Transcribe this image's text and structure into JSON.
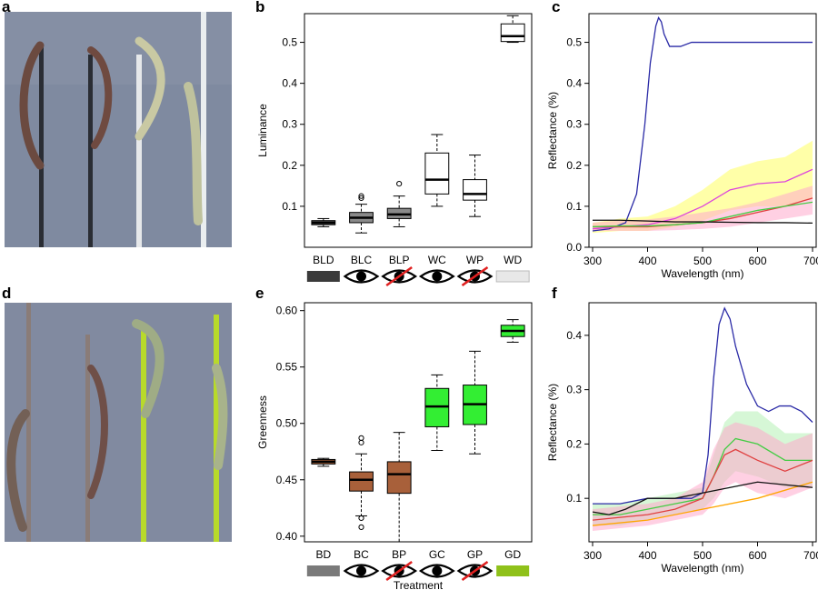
{
  "panel_letters": {
    "a": "a",
    "b": "b",
    "c": "c",
    "d": "d",
    "e": "e",
    "f": "f"
  },
  "colors": {
    "white_box": "#ffffff",
    "dark_box": "#5e5e5e",
    "grey_box": "#8a8a8a",
    "brown_box": "#a8603a",
    "green_box": "#33ee33",
    "blue_line": "#2a2aa6",
    "pink_line": "#dd44dd",
    "red_line": "#e04040",
    "green_line": "#44cc44",
    "black_line": "#111111",
    "photo_bg": "#7f8aa0"
  },
  "photos": [
    {
      "id": "a",
      "description_icon": "larvae-on-dark-and-white-rods-photo"
    },
    {
      "id": "d",
      "description_icon": "larvae-on-brown-and-green-rods-photo"
    }
  ],
  "chart_data": [
    {
      "panel": "b",
      "type": "box",
      "xlabel": "",
      "ylabel": "Luminance",
      "ylim": [
        0.0,
        0.57
      ],
      "yticks": [
        0.1,
        0.2,
        0.3,
        0.4,
        0.5
      ],
      "ytick_labels": [
        "0.1",
        "0.2",
        "0.3",
        "0.4",
        "0.5"
      ],
      "categories": [
        "BLD",
        "BLC",
        "BLP",
        "WC",
        "WP",
        "WD"
      ],
      "boxes": [
        {
          "label": "BLD",
          "min": 0.05,
          "q1": 0.055,
          "median": 0.06,
          "q3": 0.065,
          "max": 0.07,
          "outliers": [],
          "fill": "#5e5e5e",
          "marker": "dark-swatch"
        },
        {
          "label": "BLC",
          "min": 0.035,
          "q1": 0.06,
          "median": 0.072,
          "q3": 0.085,
          "max": 0.105,
          "outliers": [
            0.12,
            0.125
          ],
          "fill": "#8a8a8a",
          "marker": "eye-icon"
        },
        {
          "label": "BLP",
          "min": 0.05,
          "q1": 0.07,
          "median": 0.08,
          "q3": 0.095,
          "max": 0.125,
          "outliers": [
            0.155
          ],
          "fill": "#8a8a8a",
          "marker": "eye-crossed-icon"
        },
        {
          "label": "WC",
          "min": 0.1,
          "q1": 0.13,
          "median": 0.165,
          "q3": 0.23,
          "max": 0.275,
          "outliers": [],
          "fill": "#ffffff",
          "marker": "eye-icon"
        },
        {
          "label": "WP",
          "min": 0.075,
          "q1": 0.115,
          "median": 0.13,
          "q3": 0.165,
          "max": 0.225,
          "outliers": [],
          "fill": "#ffffff",
          "marker": "eye-crossed-icon"
        },
        {
          "label": "WD",
          "min": 0.5,
          "q1": 0.502,
          "median": 0.515,
          "q3": 0.545,
          "max": 0.565,
          "outliers": [],
          "fill": "#ffffff",
          "marker": "white-swatch"
        }
      ]
    },
    {
      "panel": "c",
      "type": "line",
      "xlabel": "Wavelength (nm)",
      "ylabel": "Reflectance (%)",
      "xlim": [
        300,
        700
      ],
      "ylim": [
        0.0,
        0.57
      ],
      "xticks": [
        300,
        400,
        500,
        600,
        700
      ],
      "yticks": [
        0.0,
        0.1,
        0.2,
        0.3,
        0.4,
        0.5
      ],
      "ytick_labels": [
        "0.0",
        "0.1",
        "0.2",
        "0.3",
        "0.4",
        "0.5"
      ],
      "series": [
        {
          "color": "#2a2aa6",
          "x": [
            300,
            330,
            360,
            380,
            395,
            405,
            415,
            420,
            425,
            430,
            440,
            460,
            480,
            500,
            550,
            600,
            650,
            700
          ],
          "y": [
            0.04,
            0.045,
            0.06,
            0.13,
            0.3,
            0.45,
            0.54,
            0.56,
            0.55,
            0.52,
            0.49,
            0.49,
            0.5,
            0.5,
            0.5,
            0.5,
            0.5,
            0.5
          ],
          "band": null
        },
        {
          "color": "#dd44dd",
          "x": [
            300,
            350,
            400,
            450,
            500,
            550,
            600,
            650,
            700
          ],
          "y": [
            0.045,
            0.05,
            0.055,
            0.07,
            0.1,
            0.14,
            0.155,
            0.16,
            0.19
          ],
          "band": {
            "lo": [
              0.035,
              0.04,
              0.04,
              0.05,
              0.065,
              0.09,
              0.1,
              0.1,
              0.12
            ],
            "hi": [
              0.06,
              0.07,
              0.075,
              0.1,
              0.14,
              0.19,
              0.21,
              0.22,
              0.26
            ],
            "color": "#ffff60"
          }
        },
        {
          "color": "#e04040",
          "x": [
            300,
            350,
            400,
            450,
            500,
            550,
            600,
            650,
            700
          ],
          "y": [
            0.05,
            0.05,
            0.05,
            0.055,
            0.06,
            0.07,
            0.085,
            0.1,
            0.12
          ],
          "band": {
            "lo": [
              0.04,
              0.04,
              0.04,
              0.042,
              0.045,
              0.05,
              0.06,
              0.07,
              0.08
            ],
            "hi": [
              0.06,
              0.065,
              0.068,
              0.075,
              0.085,
              0.095,
              0.11,
              0.13,
              0.15
            ],
            "color": "#ffaacc"
          }
        },
        {
          "color": "#44cc44",
          "x": [
            300,
            350,
            400,
            450,
            500,
            550,
            600,
            650,
            700
          ],
          "y": [
            0.05,
            0.052,
            0.052,
            0.055,
            0.06,
            0.075,
            0.09,
            0.1,
            0.11
          ],
          "band": null
        },
        {
          "color": "#111111",
          "x": [
            300,
            350,
            400,
            450,
            500,
            550,
            600,
            650,
            700
          ],
          "y": [
            0.066,
            0.066,
            0.064,
            0.062,
            0.062,
            0.061,
            0.06,
            0.06,
            0.059
          ],
          "band": null
        }
      ]
    },
    {
      "panel": "e",
      "type": "box",
      "xlabel": "Treatment",
      "ylabel": "Greenness",
      "ylim": [
        0.395,
        0.607
      ],
      "yticks": [
        0.4,
        0.45,
        0.5,
        0.55,
        0.6
      ],
      "ytick_labels": [
        "0.40",
        "0.45",
        "0.50",
        "0.55",
        "0.60"
      ],
      "categories": [
        "BD",
        "BC",
        "BP",
        "GC",
        "GP",
        "GD"
      ],
      "boxes": [
        {
          "label": "BD",
          "min": 0.462,
          "q1": 0.464,
          "median": 0.466,
          "q3": 0.468,
          "max": 0.469,
          "outliers": [],
          "fill": "#a8603a",
          "marker": "grey-swatch"
        },
        {
          "label": "BC",
          "min": 0.418,
          "q1": 0.44,
          "median": 0.45,
          "q3": 0.457,
          "max": 0.473,
          "outliers": [
            0.487,
            0.483,
            0.416,
            0.408
          ],
          "fill": "#a8603a",
          "marker": "eye-icon"
        },
        {
          "label": "BP",
          "min": 0.395,
          "q1": 0.438,
          "median": 0.455,
          "q3": 0.466,
          "max": 0.492,
          "outliers": [],
          "fill": "#a8603a",
          "marker": "eye-crossed-icon"
        },
        {
          "label": "GC",
          "min": 0.476,
          "q1": 0.497,
          "median": 0.515,
          "q3": 0.531,
          "max": 0.543,
          "outliers": [],
          "fill": "#33ee33",
          "marker": "eye-icon"
        },
        {
          "label": "GP",
          "min": 0.473,
          "q1": 0.499,
          "median": 0.517,
          "q3": 0.534,
          "max": 0.564,
          "outliers": [],
          "fill": "#33ee33",
          "marker": "eye-crossed-icon"
        },
        {
          "label": "GD",
          "min": 0.572,
          "q1": 0.577,
          "median": 0.582,
          "q3": 0.587,
          "max": 0.592,
          "outliers": [],
          "fill": "#33ee33",
          "marker": "green-swatch"
        }
      ]
    },
    {
      "panel": "f",
      "type": "line",
      "xlabel": "Wavelength (nm)",
      "ylabel": "Reflectance (%)",
      "xlim": [
        300,
        700
      ],
      "ylim": [
        0.02,
        0.46
      ],
      "xticks": [
        300,
        400,
        500,
        600,
        700
      ],
      "yticks": [
        0.1,
        0.2,
        0.3,
        0.4
      ],
      "ytick_labels": [
        "0.1",
        "0.2",
        "0.3",
        "0.4"
      ],
      "series": [
        {
          "color": "#2a2aa6",
          "x": [
            300,
            350,
            400,
            450,
            480,
            500,
            510,
            520,
            530,
            540,
            550,
            560,
            580,
            600,
            620,
            640,
            660,
            680,
            700
          ],
          "y": [
            0.09,
            0.09,
            0.1,
            0.1,
            0.1,
            0.11,
            0.18,
            0.32,
            0.42,
            0.45,
            0.43,
            0.38,
            0.31,
            0.27,
            0.26,
            0.27,
            0.27,
            0.26,
            0.24
          ],
          "band": null
        },
        {
          "color": "#44cc44",
          "x": [
            300,
            350,
            400,
            450,
            500,
            520,
            540,
            560,
            600,
            650,
            700
          ],
          "y": [
            0.07,
            0.07,
            0.08,
            0.09,
            0.1,
            0.14,
            0.19,
            0.21,
            0.2,
            0.17,
            0.17
          ],
          "band": {
            "lo": [
              0.05,
              0.05,
              0.06,
              0.07,
              0.08,
              0.1,
              0.13,
              0.15,
              0.14,
              0.12,
              0.12
            ],
            "hi": [
              0.09,
              0.09,
              0.1,
              0.11,
              0.12,
              0.18,
              0.24,
              0.26,
              0.26,
              0.22,
              0.22
            ],
            "color": "#b4f0b4"
          }
        },
        {
          "color": "#e04040",
          "x": [
            300,
            350,
            400,
            450,
            500,
            520,
            540,
            560,
            600,
            650,
            700
          ],
          "y": [
            0.06,
            0.065,
            0.07,
            0.08,
            0.1,
            0.14,
            0.18,
            0.19,
            0.17,
            0.15,
            0.17
          ],
          "band": {
            "lo": [
              0.04,
              0.045,
              0.05,
              0.06,
              0.07,
              0.09,
              0.12,
              0.13,
              0.11,
              0.1,
              0.12
            ],
            "hi": [
              0.08,
              0.085,
              0.09,
              0.1,
              0.13,
              0.19,
              0.23,
              0.24,
              0.23,
              0.2,
              0.22
            ],
            "color": "#ffaacc"
          }
        },
        {
          "color": "#ffa500",
          "x": [
            300,
            400,
            500,
            600,
            700
          ],
          "y": [
            0.05,
            0.06,
            0.08,
            0.1,
            0.13
          ],
          "band": null
        },
        {
          "color": "#111111",
          "x": [
            300,
            330,
            360,
            400,
            450,
            500,
            550,
            600,
            650,
            700
          ],
          "y": [
            0.075,
            0.07,
            0.08,
            0.1,
            0.1,
            0.11,
            0.12,
            0.13,
            0.125,
            0.12
          ],
          "band": null
        }
      ]
    }
  ]
}
